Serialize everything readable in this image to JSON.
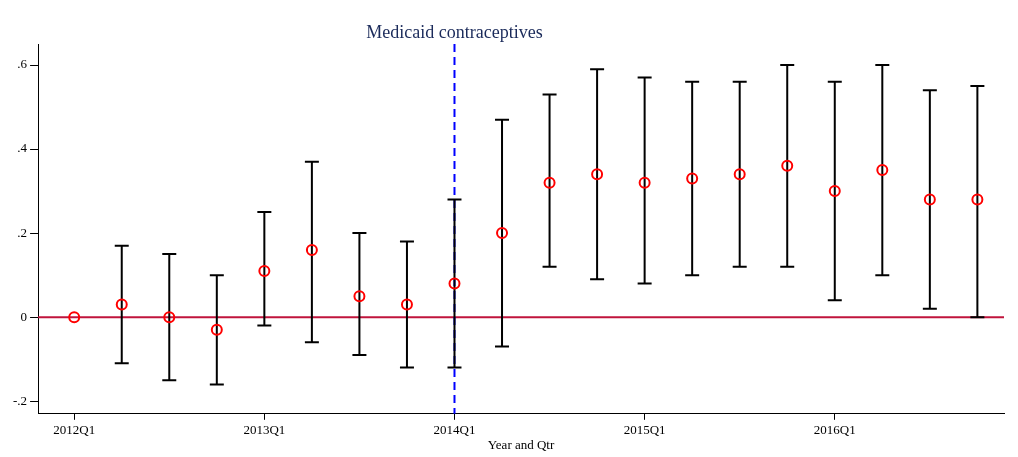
{
  "chart_data": {
    "type": "scatter",
    "xlabel": "Year and Qtr",
    "categories": [
      "2012Q1",
      null,
      null,
      null,
      "2013Q1",
      null,
      null,
      null,
      "2014Q1",
      null,
      null,
      null,
      "2015Q1",
      null,
      null,
      null,
      "2016Q1",
      null,
      null,
      null
    ],
    "series": [
      {
        "color": "#ff0000",
        "values": [
          0,
          0.03,
          0,
          -0.03,
          0.11,
          0.16,
          0.05,
          0.03,
          0.08,
          0.2,
          0.32,
          0.34,
          0.32,
          0.33,
          0.34,
          0.36,
          0.3,
          0.35,
          0.28,
          0.28
        ],
        "errors": [
          null,
          [
            -0.11,
            0.17
          ],
          [
            -0.15,
            0.15
          ],
          [
            -0.16,
            0.1
          ],
          [
            -0.02,
            0.25
          ],
          [
            -0.06,
            0.37
          ],
          [
            -0.09,
            0.2
          ],
          [
            -0.12,
            0.18
          ],
          [
            -0.12,
            0.28
          ],
          [
            -0.07,
            0.47
          ],
          [
            0.12,
            0.53
          ],
          [
            0.09,
            0.59
          ],
          [
            0.08,
            0.57
          ],
          [
            0.1,
            0.56
          ],
          [
            0.12,
            0.56
          ],
          [
            0.12,
            0.6
          ],
          [
            0.04,
            0.56
          ],
          [
            0.1,
            0.6
          ],
          [
            0.02,
            0.54
          ],
          [
            0,
            0.55
          ]
        ]
      }
    ],
    "marker": "circle",
    "grid": false,
    "legend": false,
    "ylim": [
      -0.23,
      0.65
    ],
    "yticks": [
      {
        "value": -0.2,
        "label": "-.2"
      },
      {
        "value": 0,
        "label": "0"
      },
      {
        "value": 0.2,
        "label": ".2"
      },
      {
        "value": 0.4,
        "label": ".4"
      },
      {
        "value": 0.6,
        "label": ".6"
      }
    ],
    "ref_lines": [
      {
        "axis": "y",
        "value": 0,
        "color": "#c0143c",
        "line_style": "solid"
      },
      {
        "axis": "x",
        "value": "2014Q1",
        "label": "Medicaid contraceptives",
        "color": "#0000ff",
        "line_style": "dashed"
      }
    ]
  }
}
